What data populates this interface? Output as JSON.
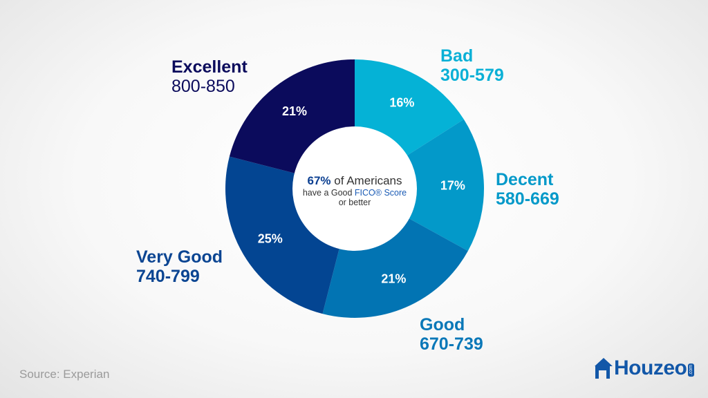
{
  "chart_data": {
    "type": "pie",
    "subtype": "donut",
    "title": "",
    "center_annotation": {
      "highlight": "67%",
      "line1_rest": " of Americans",
      "line2_prefix": "have a Good ",
      "line2_highlight": "FICO® Score",
      "line3": "or better"
    },
    "categories": [
      "Bad",
      "Decent",
      "Good",
      "Very Good",
      "Excellent"
    ],
    "ranges": [
      "300-579",
      "580-669",
      "670-739",
      "740-799",
      "800-850"
    ],
    "values": [
      16,
      17,
      21,
      25,
      21
    ],
    "value_labels": [
      "16%",
      "17%",
      "21%",
      "25%",
      "21%"
    ],
    "colors": [
      "#05b2d6",
      "#0399c9",
      "#0274b3",
      "#034592",
      "#0b0b5c"
    ],
    "start_angle": "top (12 o'clock), clockwise",
    "source": "Source: Experian"
  },
  "labels": {
    "bad": {
      "name": "Bad",
      "range": "300-579",
      "color": "#0ab0d6"
    },
    "decent": {
      "name": "Decent",
      "range": "580-669",
      "color": "#0399c9"
    },
    "good": {
      "name": "Good",
      "range": "670-739",
      "color": "#0a78b8"
    },
    "very_good": {
      "name": "Very Good",
      "range": "740-799",
      "color": "#0b4592"
    },
    "excellent": {
      "name": "Excellent",
      "range": "800-850",
      "color": "#0b0b5c"
    }
  },
  "center": {
    "highlight": "67%",
    "line1_rest": " of Americans",
    "line2_prefix": "have a Good ",
    "fico": "FICO® Score",
    "line3": "or better"
  },
  "footer": {
    "source": "Source: Experian",
    "logo": "Houzeo",
    "logo_suffix": ".com"
  }
}
